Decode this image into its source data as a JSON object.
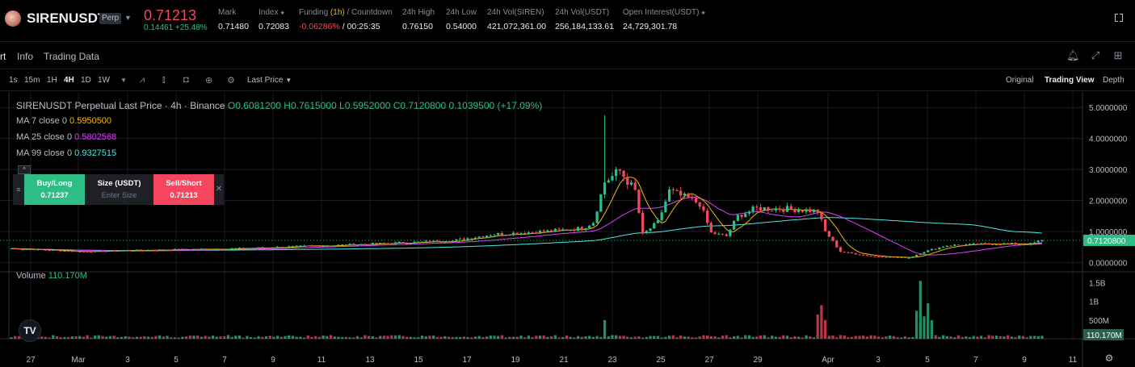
{
  "ticker": {
    "symbol": "SIRENUSDT",
    "badge": "Perp",
    "last_price": "0.71213",
    "change": "0.14461 +25.48%",
    "mark_label": "Mark",
    "mark_value": "0.71480",
    "index_label": "Index",
    "index_value": "0.72083",
    "funding_label": "Funding",
    "funding_period": "(1h)",
    "countdown_label": "/ Countdown",
    "funding_rate": "-0.06286%",
    "countdown_value": "/ 00:25:35",
    "high_label": "24h High",
    "high_value": "0.76150",
    "low_label": "24h Low",
    "low_value": "0.54000",
    "vol_base_label": "24h Vol(SIREN)",
    "vol_base_value": "421,072,361.00",
    "vol_quote_label": "24h Vol(USDT)",
    "vol_quote_value": "256,184,133.61",
    "oi_label": "Open Interest(USDT)",
    "oi_value": "24,729,301.78"
  },
  "tabs": [
    "rt",
    "Info",
    "Trading Data"
  ],
  "toolbar": {
    "intervals": [
      "1s",
      "15m",
      "1H",
      "4H",
      "1D",
      "1W"
    ],
    "active_interval": "4H",
    "price_type": "Last Price",
    "views": [
      "Original",
      "Trading View",
      "Depth"
    ],
    "active_view": "Trading View"
  },
  "legend": {
    "title": "SIRENUSDT Perpetual Last Price · 4h · Binance",
    "ohlc": "O0.6081200 H0.7615000 L0.5952000 C0.7120800 0.1039500 (+17.09%)",
    "ma": [
      {
        "label": "MA 7 close 0",
        "value": "0.5950500",
        "color": "#f0b90b"
      },
      {
        "label": "MA 25 close 0",
        "value": "0.5802568",
        "color": "#e040fb"
      },
      {
        "label": "MA 99 close 0",
        "value": "0.9327515",
        "color": "#4de8e0"
      }
    ],
    "volume_label": "Volume",
    "volume_value": "110.170M"
  },
  "trade_widget": {
    "buy_label": "Buy/Long",
    "buy_price": "0.71237",
    "size_label": "Size (USDT)",
    "size_placeholder": "Enter Size",
    "sell_label": "Sell/Short",
    "sell_price": "0.71213"
  },
  "colors": {
    "up": "#2ebd85",
    "down": "#f6465d",
    "ma7": "#f0b90b",
    "ma25": "#e040fb",
    "ma99": "#4de8e0"
  },
  "chart_data": {
    "type": "candlestick",
    "price_axis": [
      "5.0000000",
      "4.0000000",
      "3.0000000",
      "2.0000000",
      "1.0000000",
      "0.0000000"
    ],
    "price_range": [
      -0.25,
      5.5
    ],
    "current_price_label": "0.7120800",
    "volume_axis": [
      "1.5B",
      "1B",
      "500M"
    ],
    "volume_range": [
      0,
      1.75
    ],
    "current_volume_label": "110.170M",
    "x_ticks": [
      "27",
      "Mar",
      "3",
      "5",
      "7",
      "9",
      "11",
      "13",
      "15",
      "17",
      "19",
      "21",
      "23",
      "25",
      "27",
      "29",
      "Apr",
      "3",
      "5",
      "7",
      "9",
      "11"
    ],
    "anchors": [
      {
        "i": 0,
        "p": 0.45
      },
      {
        "i": 18,
        "p": 0.35
      },
      {
        "i": 36,
        "p": 0.4
      },
      {
        "i": 60,
        "p": 0.45
      },
      {
        "i": 84,
        "p": 0.55
      },
      {
        "i": 100,
        "p": 0.62
      },
      {
        "i": 116,
        "p": 0.7
      },
      {
        "i": 126,
        "p": 0.9
      },
      {
        "i": 140,
        "p": 1.0
      },
      {
        "i": 150,
        "p": 1.1
      },
      {
        "i": 153,
        "p": 1.3
      },
      {
        "i": 156,
        "p": 2.6
      },
      {
        "i": 160,
        "p": 2.95
      },
      {
        "i": 164,
        "p": 2.3
      },
      {
        "i": 166,
        "p": 0.9
      },
      {
        "i": 170,
        "p": 1.3
      },
      {
        "i": 173,
        "p": 2.3
      },
      {
        "i": 177,
        "p": 2.1
      },
      {
        "i": 181,
        "p": 1.9
      },
      {
        "i": 184,
        "p": 0.95
      },
      {
        "i": 188,
        "p": 0.85
      },
      {
        "i": 191,
        "p": 1.5
      },
      {
        "i": 196,
        "p": 1.75
      },
      {
        "i": 206,
        "p": 1.72
      },
      {
        "i": 212,
        "p": 1.65
      },
      {
        "i": 214,
        "p": 1.0
      },
      {
        "i": 218,
        "p": 0.35
      },
      {
        "i": 226,
        "p": 0.2
      },
      {
        "i": 236,
        "p": 0.15
      },
      {
        "i": 240,
        "p": 0.35
      },
      {
        "i": 246,
        "p": 0.55
      },
      {
        "i": 258,
        "p": 0.6
      },
      {
        "i": 268,
        "p": 0.6
      },
      {
        "i": 271,
        "p": 0.712
      }
    ],
    "volume_spikes": [
      {
        "i": 156,
        "v": 0.5
      },
      {
        "i": 212,
        "v": 0.65
      },
      {
        "i": 213,
        "v": 0.9
      },
      {
        "i": 214,
        "v": 0.5
      },
      {
        "i": 238,
        "v": 0.75
      },
      {
        "i": 239,
        "v": 1.55
      },
      {
        "i": 240,
        "v": 0.6
      },
      {
        "i": 241,
        "v": 0.95
      },
      {
        "i": 242,
        "v": 0.5
      }
    ],
    "spike_wick_high": 4.75
  }
}
